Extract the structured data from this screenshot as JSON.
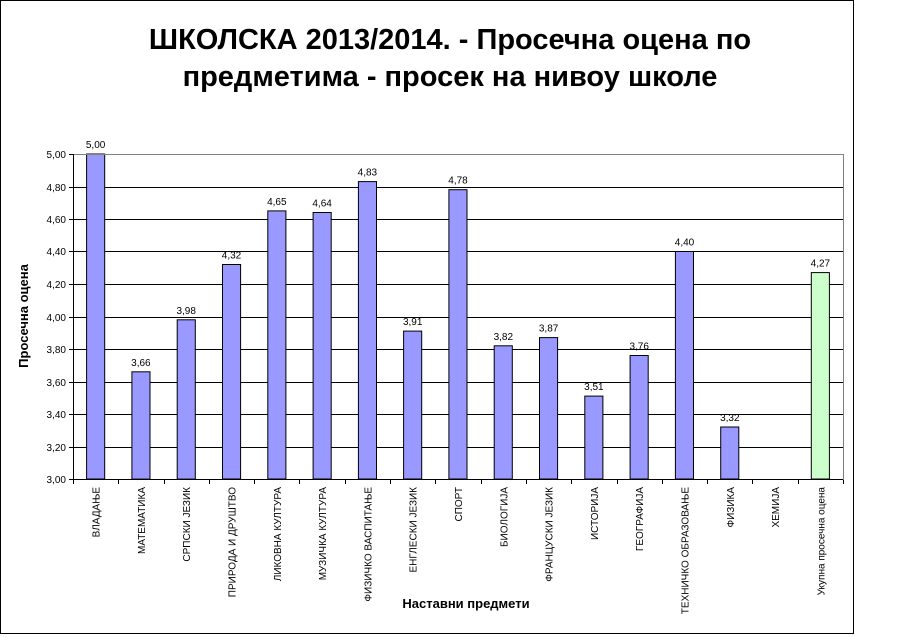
{
  "chart_data": {
    "type": "bar",
    "title_line1": "ШКОЛСКА 2013/2014. - Просечна  оцена по",
    "title_line2": "предметима - просек на нивоу школе",
    "xlabel": "Наставни предмети",
    "ylabel": "Просечна оцена",
    "ylim": [
      3.0,
      5.0
    ],
    "ytick_step": 0.2,
    "yticks": [
      "3,00",
      "3,20",
      "3,40",
      "3,60",
      "3,80",
      "4,00",
      "4,20",
      "4,40",
      "4,60",
      "4,80",
      "5,00"
    ],
    "grid": true,
    "legend": "none",
    "categories": [
      "ВЛАДАЊЕ",
      "МАТЕМАТИКА",
      "СРПСКИ ЈЕЗИК",
      "ПРИРОДА И ДРУШТВО",
      "ЛИКОВНА КУЛТУРА",
      "МУЗИЧКА КУЛТУРА",
      "ФИЗИЧКО ВАСПИТАЊЕ",
      "ЕНГЛЕСКИ ЈЕЗИК",
      "СПОРТ",
      "БИОЛОГИЈА",
      "ФРАНЦУСКИ ЈЕЗИК",
      "ИСТОРИЈА",
      "ГЕОГРАФИЈА",
      "ТЕХНИЧКО ОБРАЗОВАЊЕ",
      "ФИЗИКА",
      "ХЕМИЈА",
      "Укупна просечна оцена"
    ],
    "values": [
      5.0,
      3.66,
      3.98,
      4.32,
      4.65,
      4.64,
      4.83,
      3.91,
      4.78,
      3.82,
      3.87,
      3.51,
      3.76,
      4.4,
      3.32,
      null,
      4.27
    ],
    "value_labels": [
      "5,00",
      "3,66",
      "3,98",
      "4,32",
      "4,65",
      "4,64",
      "4,83",
      "3,91",
      "4,78",
      "3,82",
      "3,87",
      "3,51",
      "3,76",
      "4,40",
      "3,32",
      "",
      "4,27"
    ],
    "bar_color": "#9999ff",
    "highlight_color": "#ccffcc",
    "highlight_index": 16
  }
}
